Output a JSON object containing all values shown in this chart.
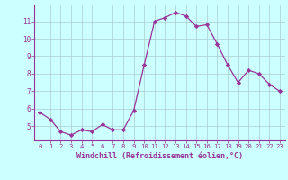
{
  "x": [
    0,
    1,
    2,
    3,
    4,
    5,
    6,
    7,
    8,
    9,
    10,
    11,
    12,
    13,
    14,
    15,
    16,
    17,
    18,
    19,
    20,
    21,
    22,
    23
  ],
  "y": [
    5.8,
    5.4,
    4.7,
    4.5,
    4.8,
    4.7,
    5.1,
    4.8,
    4.8,
    5.9,
    8.5,
    11.0,
    11.2,
    11.5,
    11.3,
    10.7,
    10.8,
    9.7,
    8.5,
    7.5,
    8.2,
    8.0,
    7.4,
    7.0
  ],
  "line_color": "#993399",
  "marker": "D",
  "marker_size": 2.2,
  "bg_color": "#ccffff",
  "grid_color": "#aacccc",
  "xlabel": "Windchill (Refroidissement éolien,°C)",
  "xlabel_color": "#993399",
  "tick_color": "#993399",
  "xlim": [
    -0.5,
    23.5
  ],
  "ylim": [
    4.2,
    11.9
  ],
  "yticks": [
    5,
    6,
    7,
    8,
    9,
    10,
    11
  ],
  "xticks": [
    0,
    1,
    2,
    3,
    4,
    5,
    6,
    7,
    8,
    9,
    10,
    11,
    12,
    13,
    14,
    15,
    16,
    17,
    18,
    19,
    20,
    21,
    22,
    23
  ]
}
